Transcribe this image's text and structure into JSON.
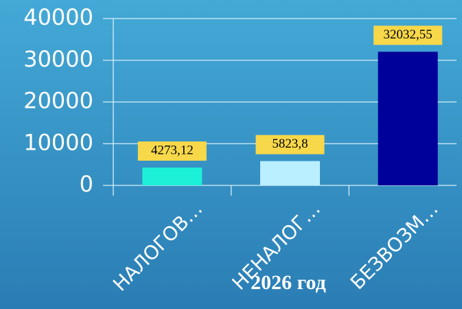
{
  "chart_data": {
    "type": "bar",
    "title": "2026 год",
    "categories": [
      "НАЛОГОВ…",
      "НЕНАЛОГ…",
      "БЕЗВОЗМ…"
    ],
    "values": [
      4273.12,
      5823.8,
      32032.55
    ],
    "value_labels": [
      "4273,12",
      "5823,8",
      "32032,55"
    ],
    "colors": [
      "#1cf0d6",
      "#b9efff",
      "#00009a"
    ],
    "ylim": [
      0,
      40000
    ],
    "yticks": [
      0,
      10000,
      20000,
      30000,
      40000
    ],
    "grid": true
  }
}
